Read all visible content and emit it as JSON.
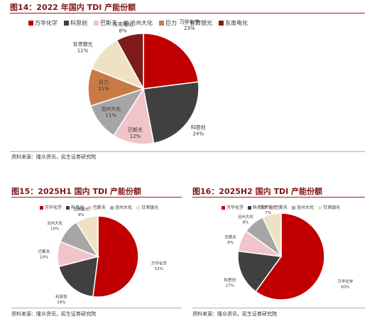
{
  "colors": {
    "wanhua": "#c00000",
    "kesichuang": "#404040",
    "basf": "#f0c4c8",
    "cangzhou": "#a6a6a6",
    "julì": "#c97a44",
    "gansu": "#efe2c4",
    "dongnan": "#7f1a1a"
  },
  "figures": {
    "fig14": {
      "title": "图14：2022 年国内 TDI 产能份额",
      "source": "资料来源：隆众资讯，民生证券研究院"
    },
    "fig15": {
      "title": "图15：2025H1 国内 TDI 产能份额",
      "source": "资料来源：隆众资讯，民生证券研究院"
    },
    "fig16": {
      "title": "图16：2025H2 国内 TDI 产能份额",
      "source": "资料来源：隆众资讯，民生证券研究院"
    }
  },
  "chart_data": [
    {
      "type": "pie",
      "title": "图14：2022 年国内 TDI 产能份额",
      "legend": [
        "万华化学",
        "科思创",
        "巴斯夫",
        "沧州大化",
        "巨力",
        "甘肃银光",
        "东南电化"
      ],
      "slices": [
        {
          "label": "万华化学",
          "value": 23,
          "display": "23%"
        },
        {
          "label": "科思创",
          "value": 24,
          "display": "24%"
        },
        {
          "label": "巴斯夫",
          "value": 12,
          "display": "12%"
        },
        {
          "label": "沧州大化",
          "value": 11,
          "display": "11%"
        },
        {
          "label": "巨力",
          "value": 11,
          "display": "11%"
        },
        {
          "label": "甘肃银光",
          "value": 11,
          "display": "11%"
        },
        {
          "label": "东南电化",
          "value": 8,
          "display": "8%"
        }
      ]
    },
    {
      "type": "pie",
      "title": "图15：2025H1 国内 TDI 产能份额",
      "legend": [
        "万华化学",
        "科思创",
        "巴斯夫",
        "沧州大化",
        "甘肃银光"
      ],
      "slices": [
        {
          "label": "万华化学",
          "value": 52,
          "display": "52%"
        },
        {
          "label": "科思创",
          "value": 19,
          "display": "19%"
        },
        {
          "label": "巴斯夫",
          "value": 10,
          "display": "10%"
        },
        {
          "label": "沧州大化",
          "value": 10,
          "display": "10%"
        },
        {
          "label": "甘肃银光",
          "value": 9,
          "display": "9%"
        }
      ]
    },
    {
      "type": "pie",
      "title": "图16：2025H2 国内 TDI 产能份额",
      "legend": [
        "万华化学",
        "科思创",
        "巴斯夫",
        "沧州大化",
        "甘肃银光"
      ],
      "slices": [
        {
          "label": "万华化学",
          "value": 60,
          "display": "60%"
        },
        {
          "label": "科思创",
          "value": 17,
          "display": "17%"
        },
        {
          "label": "巴斯夫",
          "value": 8,
          "display": "8%"
        },
        {
          "label": "沧州大化",
          "value": 8,
          "display": "8%"
        },
        {
          "label": "甘肃银光",
          "value": 7,
          "display": "7%"
        }
      ]
    }
  ]
}
